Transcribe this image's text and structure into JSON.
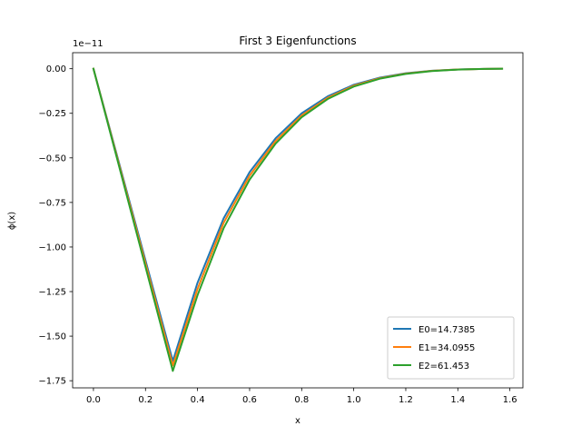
{
  "chart_data": {
    "type": "line",
    "title": "First 3 Eigenfunctions",
    "xlabel": "x",
    "ylabel": "ϕ(x)",
    "y_offset_text": "1e−11",
    "xlim": [
      -0.08,
      1.65
    ],
    "ylim": [
      -1.79,
      0.09
    ],
    "xticks": [
      0.0,
      0.2,
      0.4,
      0.6,
      0.8,
      1.0,
      1.2,
      1.4,
      1.6
    ],
    "xtick_labels": [
      "0.0",
      "0.2",
      "0.4",
      "0.6",
      "0.8",
      "1.0",
      "1.2",
      "1.4",
      "1.6"
    ],
    "yticks": [
      0.0,
      -0.25,
      -0.5,
      -0.75,
      -1.0,
      -1.25,
      -1.5,
      -1.75
    ],
    "ytick_labels": [
      "0.00",
      "−0.25",
      "−0.50",
      "−0.75",
      "−1.00",
      "−1.25",
      "−1.50",
      "−1.75"
    ],
    "grid": false,
    "legend_position": "lower-right",
    "series": [
      {
        "name": "E0=14.7385",
        "color": "#1f77b4",
        "x": [
          0.0,
          0.305,
          0.4,
          0.5,
          0.6,
          0.7,
          0.8,
          0.9,
          1.0,
          1.1,
          1.2,
          1.3,
          1.4,
          1.5,
          1.57
        ],
        "y": [
          0.0,
          -1.64,
          -1.2,
          -0.84,
          -0.58,
          -0.39,
          -0.25,
          -0.155,
          -0.09,
          -0.05,
          -0.025,
          -0.011,
          -0.004,
          -0.001,
          0.0
        ]
      },
      {
        "name": "E1=34.0955",
        "color": "#ff7f0e",
        "x": [
          0.0,
          0.305,
          0.4,
          0.5,
          0.6,
          0.7,
          0.8,
          0.9,
          1.0,
          1.1,
          1.2,
          1.3,
          1.4,
          1.5,
          1.57
        ],
        "y": [
          0.0,
          -1.665,
          -1.235,
          -0.865,
          -0.6,
          -0.405,
          -0.262,
          -0.163,
          -0.095,
          -0.053,
          -0.027,
          -0.012,
          -0.0045,
          -0.001,
          0.0
        ]
      },
      {
        "name": "E2=61.453",
        "color": "#2ca02c",
        "x": [
          0.0,
          0.305,
          0.4,
          0.5,
          0.6,
          0.7,
          0.8,
          0.9,
          1.0,
          1.1,
          1.2,
          1.3,
          1.4,
          1.5,
          1.57
        ],
        "y": [
          0.0,
          -1.695,
          -1.27,
          -0.895,
          -0.622,
          -0.42,
          -0.272,
          -0.17,
          -0.1,
          -0.056,
          -0.029,
          -0.013,
          -0.005,
          -0.0012,
          0.0
        ]
      }
    ]
  }
}
